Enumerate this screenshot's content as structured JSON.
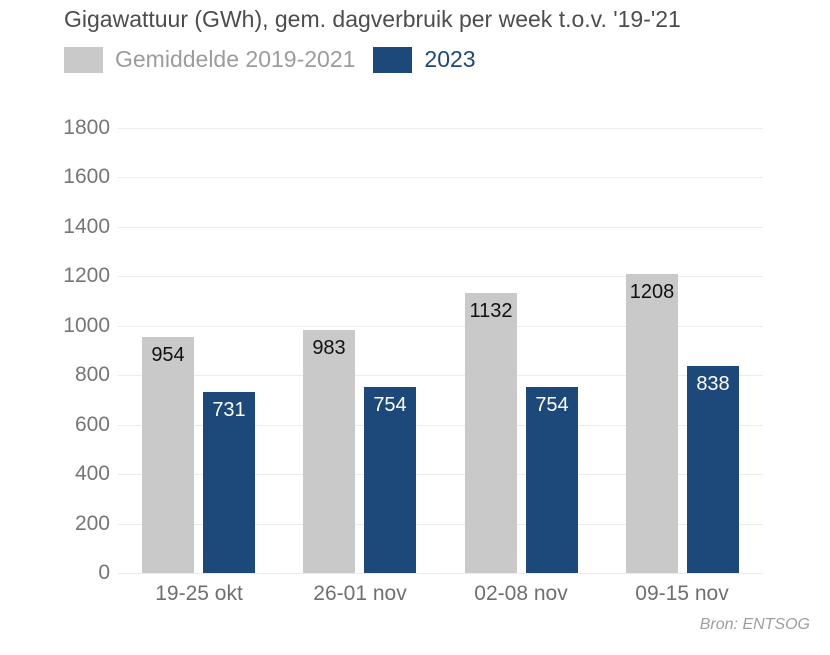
{
  "header": {
    "title": "Gigawattuur (GWh), gem. dagverbruik per week t.o.v. '19-'21"
  },
  "legend": {
    "items": [
      {
        "label": "Gemiddelde 2019-2021",
        "swatch_color": "#c9c9c9",
        "text_color": "#9c9c9c"
      },
      {
        "label": "2023",
        "swatch_color": "#1d487a",
        "text_color": "#1d487a"
      }
    ]
  },
  "chart_data": {
    "type": "bar",
    "title": "Gigawattuur (GWh), gem. dagverbruik per week t.o.v. '19-'21",
    "categories": [
      "19-25 okt",
      "26-01 nov",
      "02-08 nov",
      "09-15 nov"
    ],
    "series": [
      {
        "name": "Gemiddelde 2019-2021",
        "color": "#c9c9c9",
        "value_label_color": "#111111",
        "values": [
          954,
          983,
          1132,
          1208
        ]
      },
      {
        "name": "2023",
        "color": "#1d487a",
        "value_label_color": "#ffffff",
        "values": [
          731,
          754,
          754,
          838
        ]
      }
    ],
    "xlabel": "",
    "ylabel": "",
    "ylim": [
      0,
      1800
    ],
    "yticks": [
      0,
      200,
      400,
      600,
      800,
      1000,
      1200,
      1400,
      1600,
      1800
    ],
    "grid": true,
    "legend_position": "top-left",
    "value_labels": "inside-top"
  },
  "footer": {
    "source": "Bron: ENTSOG"
  },
  "colors": {
    "background": "#ffffff",
    "gridline": "#ececec",
    "axis_text": "#6f6f6f",
    "title_text": "#4d4d4d",
    "brand_blue": "#1d487a",
    "brand_gray": "#c9c9c9"
  }
}
